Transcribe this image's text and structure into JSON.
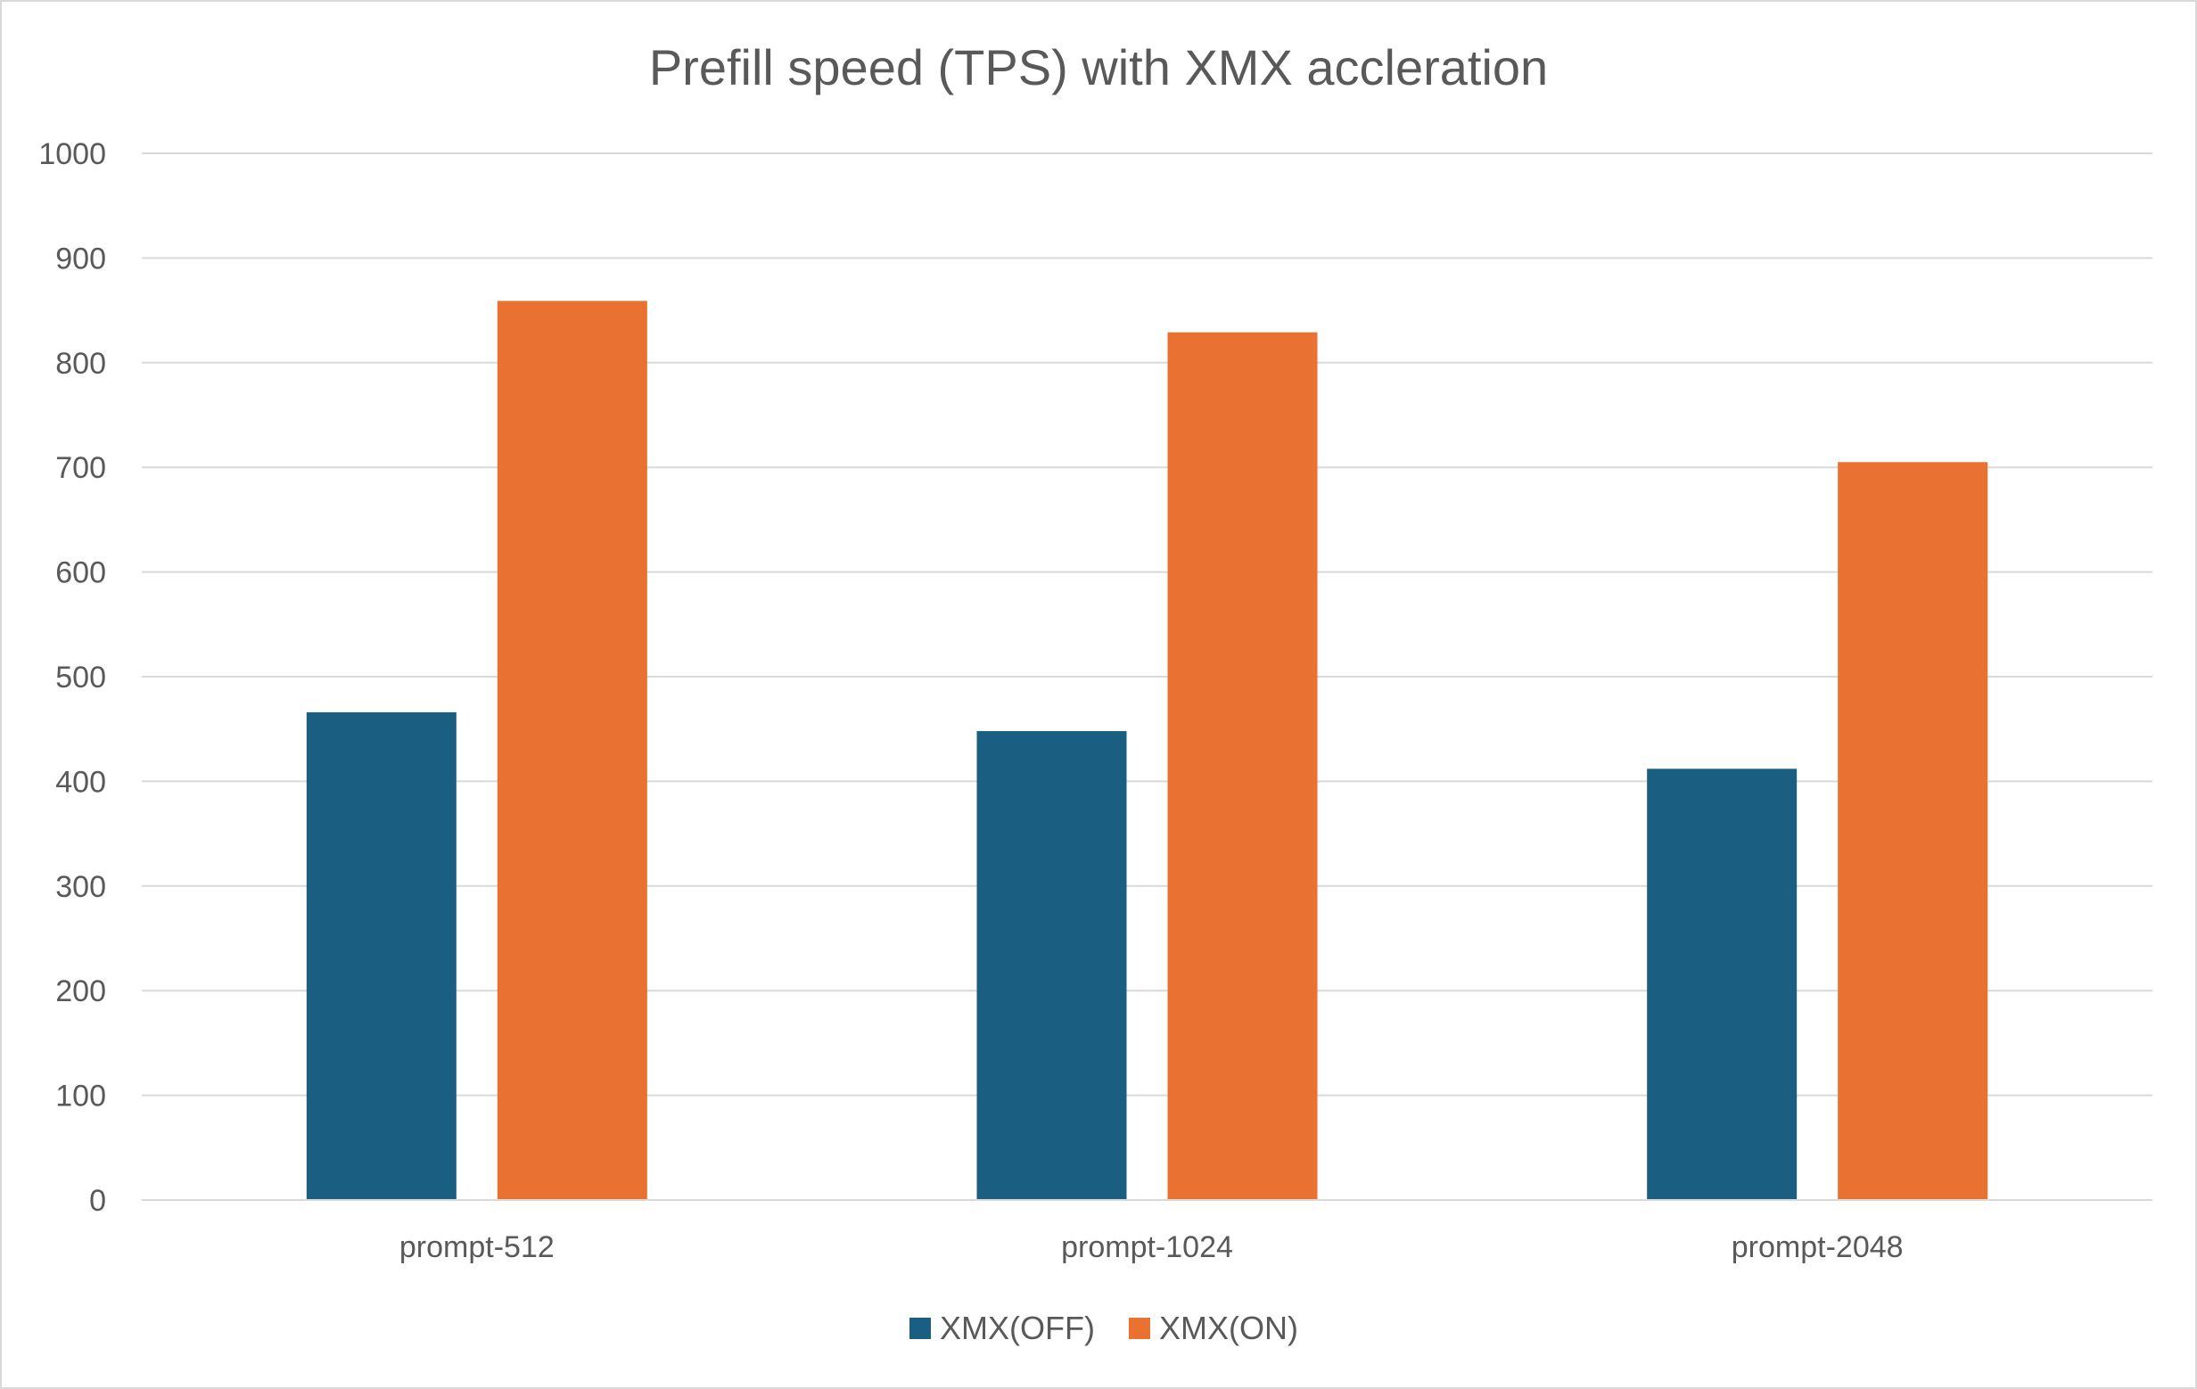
{
  "chart_data": {
    "type": "bar",
    "title": "Prefill speed (TPS) with XMX accleration",
    "xlabel": "",
    "ylabel": "",
    "categories": [
      "prompt-512",
      "prompt-1024",
      "prompt-2048"
    ],
    "series": [
      {
        "name": "XMX(OFF)",
        "color": "#1a5f82",
        "values": [
          466,
          448,
          412
        ]
      },
      {
        "name": "XMX(ON)",
        "color": "#e97132",
        "values": [
          859,
          829,
          705
        ]
      }
    ],
    "ylim": [
      0,
      1000
    ],
    "yticks": [
      0,
      100,
      200,
      300,
      400,
      500,
      600,
      700,
      800,
      900,
      1000
    ],
    "grid": true,
    "legend_position": "bottom",
    "gridline_color": "#d9d9d9",
    "text_color": "#595959"
  }
}
